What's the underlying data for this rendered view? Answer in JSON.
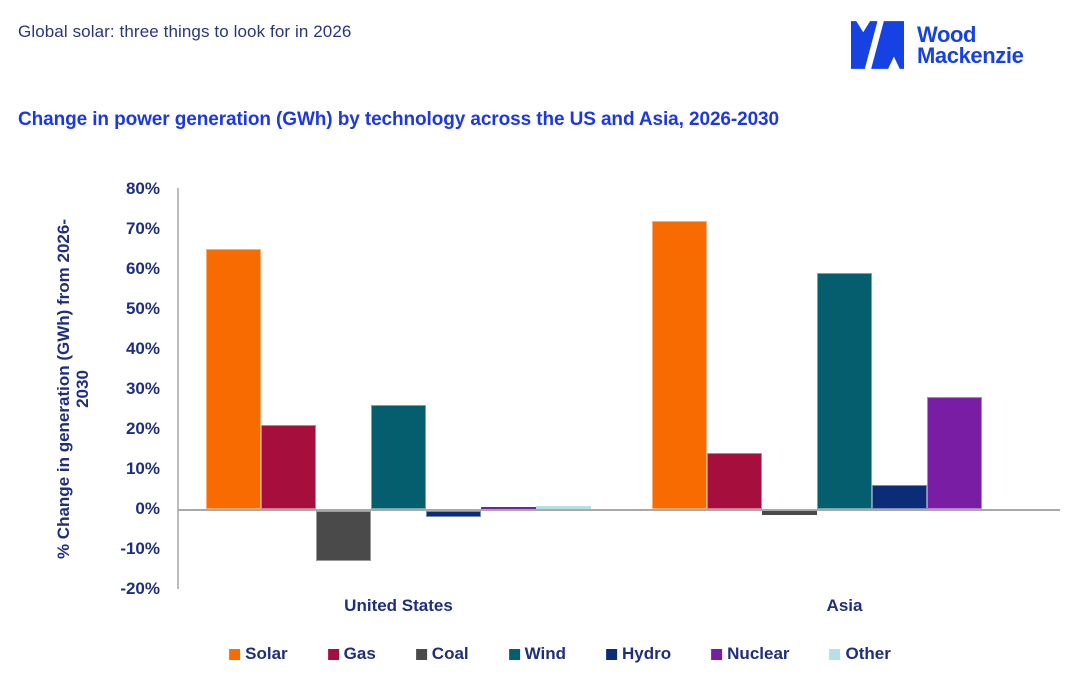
{
  "header": {
    "title": "Global solar: three things to look for in 2026",
    "logo_line1": "Wood",
    "logo_line2": "Mackenzie",
    "logo_color": "#1641E3"
  },
  "chart_data": {
    "type": "bar",
    "title": "Change in power generation (GWh) by technology across the US and Asia, 2026-2030",
    "ylabel": "% Change in generation (GWh) from 2026-2030",
    "ylabel_lines": [
      "% Change in generation (GWh) from 2026-",
      "2030"
    ],
    "xlabel": "",
    "categories": [
      "United States",
      "Asia"
    ],
    "series": [
      {
        "name": "Solar",
        "color": "#F76B00",
        "values": [
          65,
          72
        ]
      },
      {
        "name": "Gas",
        "color": "#A60F3D",
        "values": [
          21,
          14
        ]
      },
      {
        "name": "Coal",
        "color": "#4A4A4A",
        "values": [
          -12.5,
          -1
        ]
      },
      {
        "name": "Wind",
        "color": "#045E6E",
        "values": [
          26,
          59
        ]
      },
      {
        "name": "Hydro",
        "color": "#0B2D78",
        "values": [
          -1.5,
          6
        ]
      },
      {
        "name": "Nuclear",
        "color": "#781DA4",
        "values": [
          0.5,
          28
        ]
      },
      {
        "name": "Other",
        "color": "#B4E0E6",
        "values": [
          0.7,
          0
        ]
      }
    ],
    "y_ticks": [
      "80%",
      "70%",
      "60%",
      "50%",
      "40%",
      "30%",
      "20%",
      "10%",
      "0%",
      "-10%",
      "-20%"
    ],
    "ylim": [
      -20,
      80
    ],
    "grid": false,
    "legend_position": "bottom",
    "text_color": "#1F2F7E",
    "title_color": "#1C38E2",
    "axis_line_color": "#A9A9A9"
  }
}
